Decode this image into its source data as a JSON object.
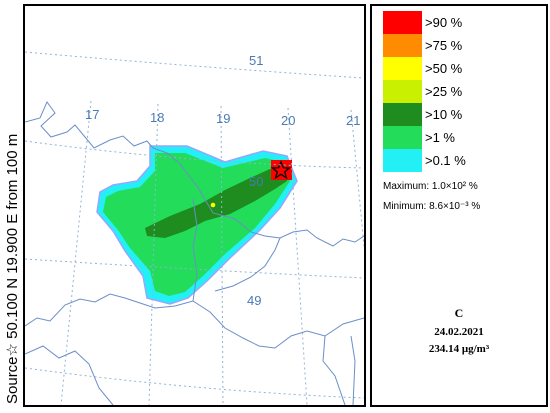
{
  "vertical_label": "Source☆ 50.100 N 19.900 E from 100 m",
  "map": {
    "lon_labels": [
      "17",
      "18",
      "19",
      "20",
      "21"
    ],
    "lat_labels": [
      "51",
      "50",
      "49"
    ],
    "label_color": "#4a7ab5",
    "border_color": "#6b8ec9",
    "grid_color": "#8fb3d9"
  },
  "legend": {
    "items": [
      {
        "label": ">90  %",
        "color": "#ff0000"
      },
      {
        "label": ">75  %",
        "color": "#ff8c00"
      },
      {
        "label": ">50  %",
        "color": "#ffff00"
      },
      {
        "label": ">25  %",
        "color": "#c8f000"
      },
      {
        "label": ">10  %",
        "color": "#1e8c1e"
      },
      {
        "label": ">1  %",
        "color": "#22dc5a"
      },
      {
        "label": ">0.1  %",
        "color": "#22f0f5"
      }
    ],
    "maximum": "Maximum:  1.0×10²  %",
    "minimum": "Minimum:  8.6×10⁻³  %"
  },
  "info": {
    "panel_letter": "C",
    "date": "24.02.2021",
    "value": "234.14 μg/m³"
  }
}
